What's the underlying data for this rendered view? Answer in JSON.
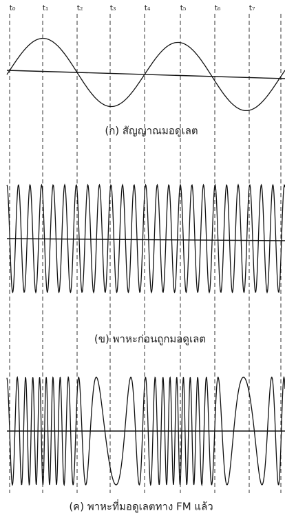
{
  "time_labels": [
    "t₀",
    "t₁",
    "t₂",
    "t₃",
    "t₄",
    "t₅",
    "t₆",
    "t₇"
  ],
  "captions": [
    "(ก) สัญญาณมอดูเลต",
    "(ข) พาหะก่อนถูกมอดูเลต",
    "(ค) พาหะที่มอดูเลตทาง FM แล้ว"
  ]
}
